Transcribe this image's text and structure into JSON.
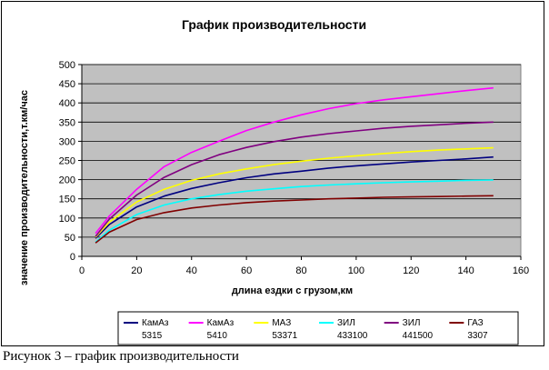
{
  "caption": "Рисунок 3 – график производительности",
  "chart_data": {
    "type": "line",
    "title": "График производительности",
    "xlabel": "длина ездки с грузом,км",
    "ylabel": "значение производительности,т.км/час",
    "xlim": [
      0,
      160
    ],
    "ylim": [
      0,
      500
    ],
    "xticks": [
      0,
      20,
      40,
      60,
      80,
      100,
      120,
      140,
      160
    ],
    "yticks": [
      0,
      50,
      100,
      150,
      200,
      250,
      300,
      350,
      400,
      450,
      500
    ],
    "grid": true,
    "plot_background": "#c0c0c0",
    "legend_position": "bottom",
    "x": [
      5,
      10,
      20,
      30,
      40,
      50,
      60,
      70,
      80,
      90,
      100,
      110,
      120,
      130,
      140,
      150
    ],
    "series": [
      {
        "name": "КамАз 5315",
        "color": "#000080",
        "values": [
          47,
          83,
          129,
          157,
          177,
          192,
          205,
          215,
          222,
          230,
          236,
          241,
          246,
          250,
          254,
          259
        ]
      },
      {
        "name": "КамАз 5410",
        "color": "#ff00ff",
        "values": [
          60,
          105,
          175,
          234,
          271,
          300,
          328,
          350,
          369,
          385,
          398,
          408,
          416,
          424,
          432,
          439
        ]
      },
      {
        "name": "МАЗ 53371",
        "color": "#ffff00",
        "values": [
          50,
          89,
          142,
          175,
          198,
          215,
          228,
          239,
          248,
          256,
          262,
          268,
          273,
          277,
          280,
          283
        ]
      },
      {
        "name": "ЗИЛ 433100",
        "color": "#00ffff",
        "values": [
          37,
          68,
          109,
          134,
          150,
          161,
          170,
          176,
          182,
          186,
          189,
          192,
          194,
          196,
          198,
          199
        ]
      },
      {
        "name": "ЗИЛ 441500",
        "color": "#800080",
        "values": [
          52,
          97,
          160,
          206,
          239,
          265,
          284,
          299,
          311,
          320,
          327,
          334,
          339,
          343,
          347,
          350
        ]
      },
      {
        "name": "ГАЗ 3307",
        "color": "#800000",
        "values": [
          35,
          63,
          96,
          114,
          126,
          134,
          140,
          144,
          147,
          150,
          152,
          154,
          155,
          156,
          157,
          158
        ]
      }
    ]
  }
}
